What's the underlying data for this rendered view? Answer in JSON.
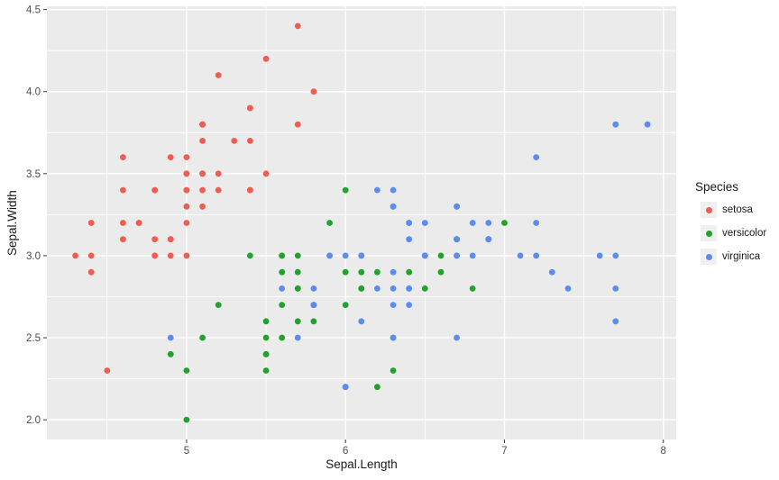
{
  "chart_data": {
    "type": "scatter",
    "title": "",
    "xlabel": "Sepal.Length",
    "ylabel": "Sepal.Width",
    "xlim": [
      4.121,
      8.081
    ],
    "ylim": [
      1.88,
      4.52
    ],
    "x_ticks": [
      5,
      6,
      7,
      8
    ],
    "x_tick_labels": [
      "5",
      "6",
      "7",
      "8"
    ],
    "y_ticks": [
      2.0,
      2.5,
      3.0,
      3.5,
      4.0,
      4.5
    ],
    "y_tick_labels": [
      "2.0",
      "2.5",
      "3.0",
      "3.5",
      "4.0",
      "4.5"
    ],
    "x_minor_ticks": [
      4.5,
      5.5,
      6.5,
      7.5
    ],
    "y_minor_ticks": [
      2.25,
      2.75,
      3.25,
      3.75,
      4.25
    ],
    "panel_background": "#EBEBEB",
    "grid_color": "#FFFFFF",
    "tick_mark_color": "#333333",
    "legend": {
      "title": "Species",
      "position": "right",
      "key_background": "#F0F0F0"
    },
    "series": [
      {
        "name": "setosa",
        "color": "#EE5C52",
        "points": [
          [
            5.1,
            3.5
          ],
          [
            4.9,
            3.0
          ],
          [
            4.7,
            3.2
          ],
          [
            4.6,
            3.1
          ],
          [
            5.0,
            3.6
          ],
          [
            5.4,
            3.9
          ],
          [
            4.6,
            3.4
          ],
          [
            5.0,
            3.4
          ],
          [
            4.4,
            2.9
          ],
          [
            4.9,
            3.1
          ],
          [
            5.4,
            3.7
          ],
          [
            4.8,
            3.4
          ],
          [
            4.8,
            3.0
          ],
          [
            4.3,
            3.0
          ],
          [
            5.8,
            4.0
          ],
          [
            5.7,
            4.4
          ],
          [
            5.4,
            3.9
          ],
          [
            5.1,
            3.5
          ],
          [
            5.7,
            3.8
          ],
          [
            5.1,
            3.8
          ],
          [
            5.4,
            3.4
          ],
          [
            5.1,
            3.7
          ],
          [
            4.6,
            3.6
          ],
          [
            5.1,
            3.3
          ],
          [
            4.8,
            3.4
          ],
          [
            5.0,
            3.0
          ],
          [
            5.0,
            3.4
          ],
          [
            5.2,
            3.5
          ],
          [
            5.2,
            3.4
          ],
          [
            4.7,
            3.2
          ],
          [
            4.8,
            3.1
          ],
          [
            5.4,
            3.4
          ],
          [
            5.2,
            4.1
          ],
          [
            5.5,
            4.2
          ],
          [
            4.9,
            3.1
          ],
          [
            5.0,
            3.2
          ],
          [
            5.5,
            3.5
          ],
          [
            4.9,
            3.6
          ],
          [
            4.4,
            3.0
          ],
          [
            5.1,
            3.4
          ],
          [
            5.0,
            3.5
          ],
          [
            4.5,
            2.3
          ],
          [
            4.4,
            3.2
          ],
          [
            5.0,
            3.5
          ],
          [
            5.1,
            3.8
          ],
          [
            4.8,
            3.0
          ],
          [
            5.1,
            3.8
          ],
          [
            4.6,
            3.2
          ],
          [
            5.3,
            3.7
          ],
          [
            5.0,
            3.3
          ]
        ]
      },
      {
        "name": "versicolor",
        "color": "#20A22C",
        "points": [
          [
            7.0,
            3.2
          ],
          [
            6.4,
            3.2
          ],
          [
            6.9,
            3.1
          ],
          [
            5.5,
            2.3
          ],
          [
            6.5,
            2.8
          ],
          [
            5.7,
            2.8
          ],
          [
            6.3,
            3.3
          ],
          [
            4.9,
            2.4
          ],
          [
            6.6,
            2.9
          ],
          [
            5.2,
            2.7
          ],
          [
            5.0,
            2.0
          ],
          [
            5.9,
            3.0
          ],
          [
            6.0,
            2.2
          ],
          [
            6.1,
            2.9
          ],
          [
            5.6,
            2.9
          ],
          [
            6.7,
            3.1
          ],
          [
            5.6,
            3.0
          ],
          [
            5.8,
            2.7
          ],
          [
            6.2,
            2.2
          ],
          [
            5.6,
            2.5
          ],
          [
            5.9,
            3.2
          ],
          [
            6.1,
            2.8
          ],
          [
            6.3,
            2.5
          ],
          [
            6.1,
            2.8
          ],
          [
            6.4,
            2.9
          ],
          [
            6.6,
            3.0
          ],
          [
            6.8,
            2.8
          ],
          [
            6.7,
            3.0
          ],
          [
            6.0,
            2.9
          ],
          [
            5.7,
            2.6
          ],
          [
            5.5,
            2.4
          ],
          [
            5.5,
            2.4
          ],
          [
            5.8,
            2.7
          ],
          [
            6.0,
            2.7
          ],
          [
            5.4,
            3.0
          ],
          [
            6.0,
            3.4
          ],
          [
            6.7,
            3.1
          ],
          [
            6.3,
            2.3
          ],
          [
            5.6,
            3.0
          ],
          [
            5.5,
            2.5
          ],
          [
            5.5,
            2.6
          ],
          [
            6.1,
            3.0
          ],
          [
            5.8,
            2.6
          ],
          [
            5.0,
            2.3
          ],
          [
            5.6,
            2.7
          ],
          [
            5.7,
            3.0
          ],
          [
            5.7,
            2.9
          ],
          [
            6.2,
            2.9
          ],
          [
            5.1,
            2.5
          ],
          [
            5.7,
            2.8
          ]
        ]
      },
      {
        "name": "virginica",
        "color": "#5C8CEF",
        "points": [
          [
            6.3,
            3.3
          ],
          [
            5.8,
            2.7
          ],
          [
            7.1,
            3.0
          ],
          [
            6.3,
            2.9
          ],
          [
            6.5,
            3.0
          ],
          [
            7.6,
            3.0
          ],
          [
            4.9,
            2.5
          ],
          [
            7.3,
            2.9
          ],
          [
            6.7,
            2.5
          ],
          [
            7.2,
            3.6
          ],
          [
            6.5,
            3.2
          ],
          [
            6.4,
            2.7
          ],
          [
            6.8,
            3.0
          ],
          [
            5.7,
            2.5
          ],
          [
            5.8,
            2.8
          ],
          [
            6.4,
            3.2
          ],
          [
            6.5,
            3.0
          ],
          [
            7.7,
            3.8
          ],
          [
            7.7,
            2.6
          ],
          [
            6.0,
            2.2
          ],
          [
            6.9,
            3.2
          ],
          [
            5.6,
            2.8
          ],
          [
            7.7,
            2.8
          ],
          [
            6.3,
            2.7
          ],
          [
            6.7,
            3.3
          ],
          [
            7.2,
            3.2
          ],
          [
            6.2,
            2.8
          ],
          [
            6.1,
            3.0
          ],
          [
            6.4,
            2.8
          ],
          [
            7.2,
            3.0
          ],
          [
            7.4,
            2.8
          ],
          [
            7.9,
            3.8
          ],
          [
            6.4,
            2.8
          ],
          [
            6.3,
            2.8
          ],
          [
            6.1,
            2.6
          ],
          [
            7.7,
            3.0
          ],
          [
            6.3,
            3.4
          ],
          [
            6.4,
            3.1
          ],
          [
            6.0,
            3.0
          ],
          [
            6.9,
            3.1
          ],
          [
            6.7,
            3.1
          ],
          [
            6.9,
            3.1
          ],
          [
            5.8,
            2.7
          ],
          [
            6.8,
            3.2
          ],
          [
            6.7,
            3.3
          ],
          [
            6.7,
            3.0
          ],
          [
            6.3,
            2.5
          ],
          [
            6.5,
            3.0
          ],
          [
            6.2,
            3.4
          ],
          [
            5.9,
            3.0
          ]
        ]
      }
    ]
  }
}
